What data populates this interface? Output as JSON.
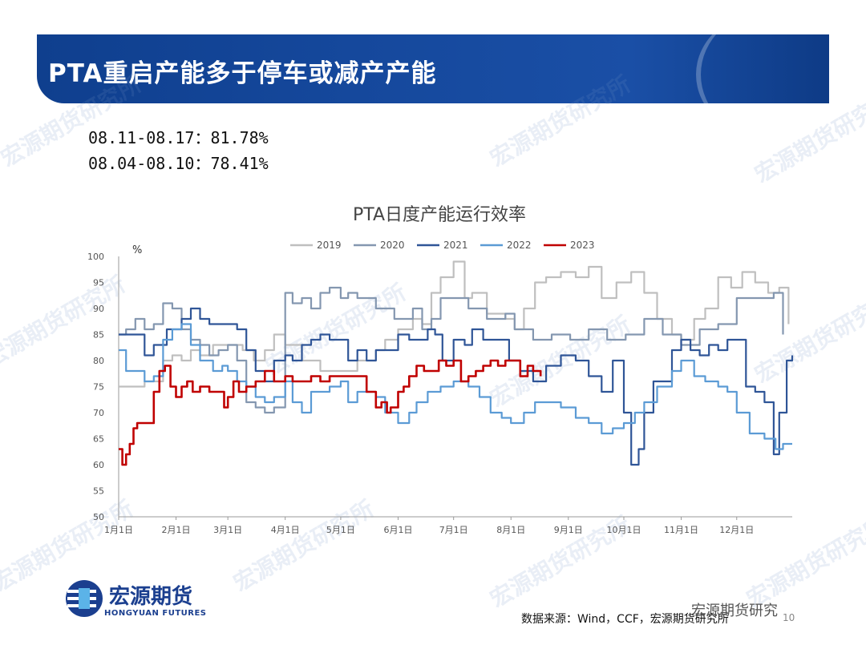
{
  "header": {
    "title": "PTA重启产能多于停车或减产产能"
  },
  "stats": [
    {
      "label": "08.11-08.17：81.78%"
    },
    {
      "label": "08.04-08.10：78.41%"
    }
  ],
  "watermark": "宏源期货研究所",
  "footer": {
    "logo_text": "宏源期货",
    "logo_sub": "HONGYUAN FUTURES",
    "source": "数据来源：Wind，CCF，宏源期货研究所",
    "wechat": "宏源期货研究",
    "page": "10"
  },
  "colors": {
    "banner": "#15489c",
    "2019": "#bfbfbf",
    "2020": "#8497b0",
    "2021": "#2f5597",
    "2022": "#5b9bd5",
    "2023": "#c00000"
  },
  "chart_data": {
    "type": "line",
    "title": "PTA日度产能运行效率",
    "ylabel": "%",
    "xlabel": "",
    "ylim": [
      50,
      100
    ],
    "yticks": [
      50,
      55,
      60,
      65,
      70,
      75,
      80,
      85,
      90,
      95,
      100
    ],
    "xlim": [
      1,
      365
    ],
    "xtick_labels": [
      "1月1日",
      "2月1日",
      "3月1日",
      "4月1日",
      "5月1日",
      "6月1日",
      "7月1日",
      "8月1日",
      "9月1日",
      "10月1日",
      "11月1日",
      "12月1日"
    ],
    "xtick_days": [
      1,
      32,
      60,
      91,
      121,
      152,
      182,
      213,
      244,
      274,
      305,
      335
    ],
    "legend_position": "top",
    "grid": false,
    "series": [
      {
        "name": "2019",
        "color": "#bfbfbf",
        "x": [
          1,
          10,
          15,
          25,
          30,
          35,
          40,
          45,
          52,
          60,
          68,
          74,
          80,
          85,
          91,
          100,
          110,
          121,
          130,
          140,
          145,
          152,
          160,
          165,
          170,
          175,
          182,
          188,
          192,
          200,
          210,
          215,
          220,
          226,
          232,
          240,
          248,
          255,
          262,
          270,
          278,
          285,
          292,
          300,
          305,
          312,
          318,
          325,
          332,
          338,
          345,
          352,
          358,
          363
        ],
        "y": [
          75,
          75,
          76,
          80,
          81,
          80,
          82,
          81,
          83,
          83,
          82,
          80,
          82,
          85,
          83,
          80,
          78,
          78,
          80,
          82,
          84,
          86,
          88,
          87,
          93,
          96,
          99,
          92,
          93,
          89,
          88,
          86,
          90,
          95,
          96,
          97,
          96,
          98,
          92,
          95,
          97,
          93,
          88,
          85,
          84,
          88,
          90,
          96,
          94,
          97,
          95,
          93,
          94,
          87
        ]
      },
      {
        "name": "2020",
        "color": "#8497b0",
        "x": [
          1,
          5,
          10,
          15,
          20,
          25,
          30,
          35,
          40,
          45,
          50,
          55,
          60,
          65,
          70,
          75,
          80,
          85,
          91,
          95,
          100,
          105,
          110,
          115,
          121,
          125,
          130,
          140,
          150,
          160,
          165,
          170,
          175,
          182,
          190,
          200,
          210,
          215,
          225,
          235,
          245,
          255,
          265,
          275,
          285,
          295,
          305,
          315,
          325,
          335,
          345,
          355,
          360
        ],
        "y": [
          85,
          86,
          88,
          86,
          87,
          91,
          90,
          86,
          84,
          83,
          81,
          82,
          83,
          80,
          72,
          71,
          70,
          71,
          93,
          91,
          92,
          90,
          93,
          94,
          92,
          93,
          92,
          90,
          88,
          90,
          86,
          88,
          92,
          92,
          90,
          88,
          89,
          86,
          84,
          85,
          84,
          86,
          84,
          85,
          88,
          85,
          83,
          86,
          87,
          92,
          92,
          93,
          85
        ]
      },
      {
        "name": "2021",
        "color": "#2f5597",
        "x": [
          1,
          8,
          15,
          20,
          27,
          35,
          40,
          45,
          50,
          55,
          60,
          65,
          70,
          75,
          80,
          85,
          91,
          95,
          100,
          105,
          110,
          115,
          121,
          125,
          130,
          135,
          140,
          145,
          152,
          158,
          162,
          168,
          172,
          176,
          182,
          188,
          192,
          198,
          205,
          212,
          218,
          225,
          232,
          240,
          248,
          255,
          262,
          268,
          274,
          278,
          282,
          285,
          290,
          300,
          305,
          310,
          315,
          320,
          325,
          330,
          335,
          340,
          345,
          350,
          355,
          358,
          362,
          365
        ],
        "y": [
          85,
          85,
          81,
          83,
          86,
          88,
          90,
          88,
          87,
          87,
          87,
          86,
          82,
          78,
          76,
          80,
          81,
          80,
          83,
          84,
          85,
          84,
          84,
          80,
          82,
          80,
          82,
          82,
          85,
          84,
          84,
          86,
          85,
          80,
          84,
          83,
          86,
          84,
          84,
          80,
          78,
          76,
          79,
          81,
          80,
          77,
          74,
          80,
          70,
          60,
          63,
          70,
          76,
          82,
          84,
          82,
          81,
          83,
          82,
          84,
          84,
          75,
          74,
          72,
          62,
          70,
          80,
          81
        ]
      },
      {
        "name": "2022",
        "color": "#5b9bd5",
        "x": [
          1,
          5,
          10,
          15,
          20,
          25,
          30,
          35,
          40,
          45,
          52,
          57,
          60,
          65,
          70,
          75,
          80,
          85,
          91,
          95,
          100,
          105,
          110,
          115,
          121,
          125,
          130,
          135,
          140,
          145,
          152,
          158,
          162,
          168,
          175,
          182,
          190,
          196,
          202,
          208,
          213,
          220,
          226,
          232,
          240,
          248,
          255,
          262,
          268,
          274,
          280,
          285,
          292,
          300,
          305,
          312,
          318,
          325,
          330,
          335,
          342,
          350,
          356,
          360,
          365
        ],
        "y": [
          82,
          78,
          78,
          76,
          77,
          84,
          86,
          87,
          83,
          80,
          78,
          79,
          78,
          76,
          75,
          73,
          72,
          73,
          76,
          72,
          70,
          74,
          74,
          75,
          76,
          72,
          74,
          74,
          73,
          70,
          68,
          70,
          72,
          74,
          75,
          76,
          75,
          73,
          70,
          69,
          68,
          70,
          72,
          72,
          71,
          69,
          68,
          66,
          67,
          68,
          70,
          72,
          75,
          78,
          80,
          77,
          76,
          75,
          74,
          70,
          66,
          65,
          63,
          64,
          64
        ]
      },
      {
        "name": "2023",
        "color": "#c00000",
        "x": [
          1,
          3,
          5,
          7,
          9,
          11,
          13,
          15,
          17,
          20,
          23,
          26,
          29,
          32,
          35,
          38,
          41,
          45,
          50,
          55,
          58,
          60,
          63,
          66,
          70,
          75,
          80,
          85,
          91,
          95,
          100,
          105,
          110,
          115,
          121,
          125,
          130,
          135,
          140,
          143,
          146,
          148,
          152,
          155,
          158,
          162,
          166,
          170,
          174,
          178,
          182,
          186,
          190,
          194,
          198,
          202,
          206,
          210,
          214,
          218,
          222,
          225,
          229
        ],
        "y": [
          63,
          60,
          62,
          64,
          67,
          68,
          68,
          68,
          68,
          74,
          78,
          79,
          75,
          73,
          75,
          76,
          74,
          75,
          74,
          74,
          71,
          73,
          76,
          74,
          75,
          76,
          78,
          76,
          77,
          76,
          76,
          77,
          76,
          77,
          77,
          77,
          77,
          74,
          71,
          72,
          70,
          71,
          74,
          75,
          77,
          79,
          78,
          78,
          80,
          79,
          80,
          76,
          77,
          78,
          79,
          80,
          79,
          80,
          80,
          77,
          79,
          78,
          77
        ]
      }
    ]
  }
}
